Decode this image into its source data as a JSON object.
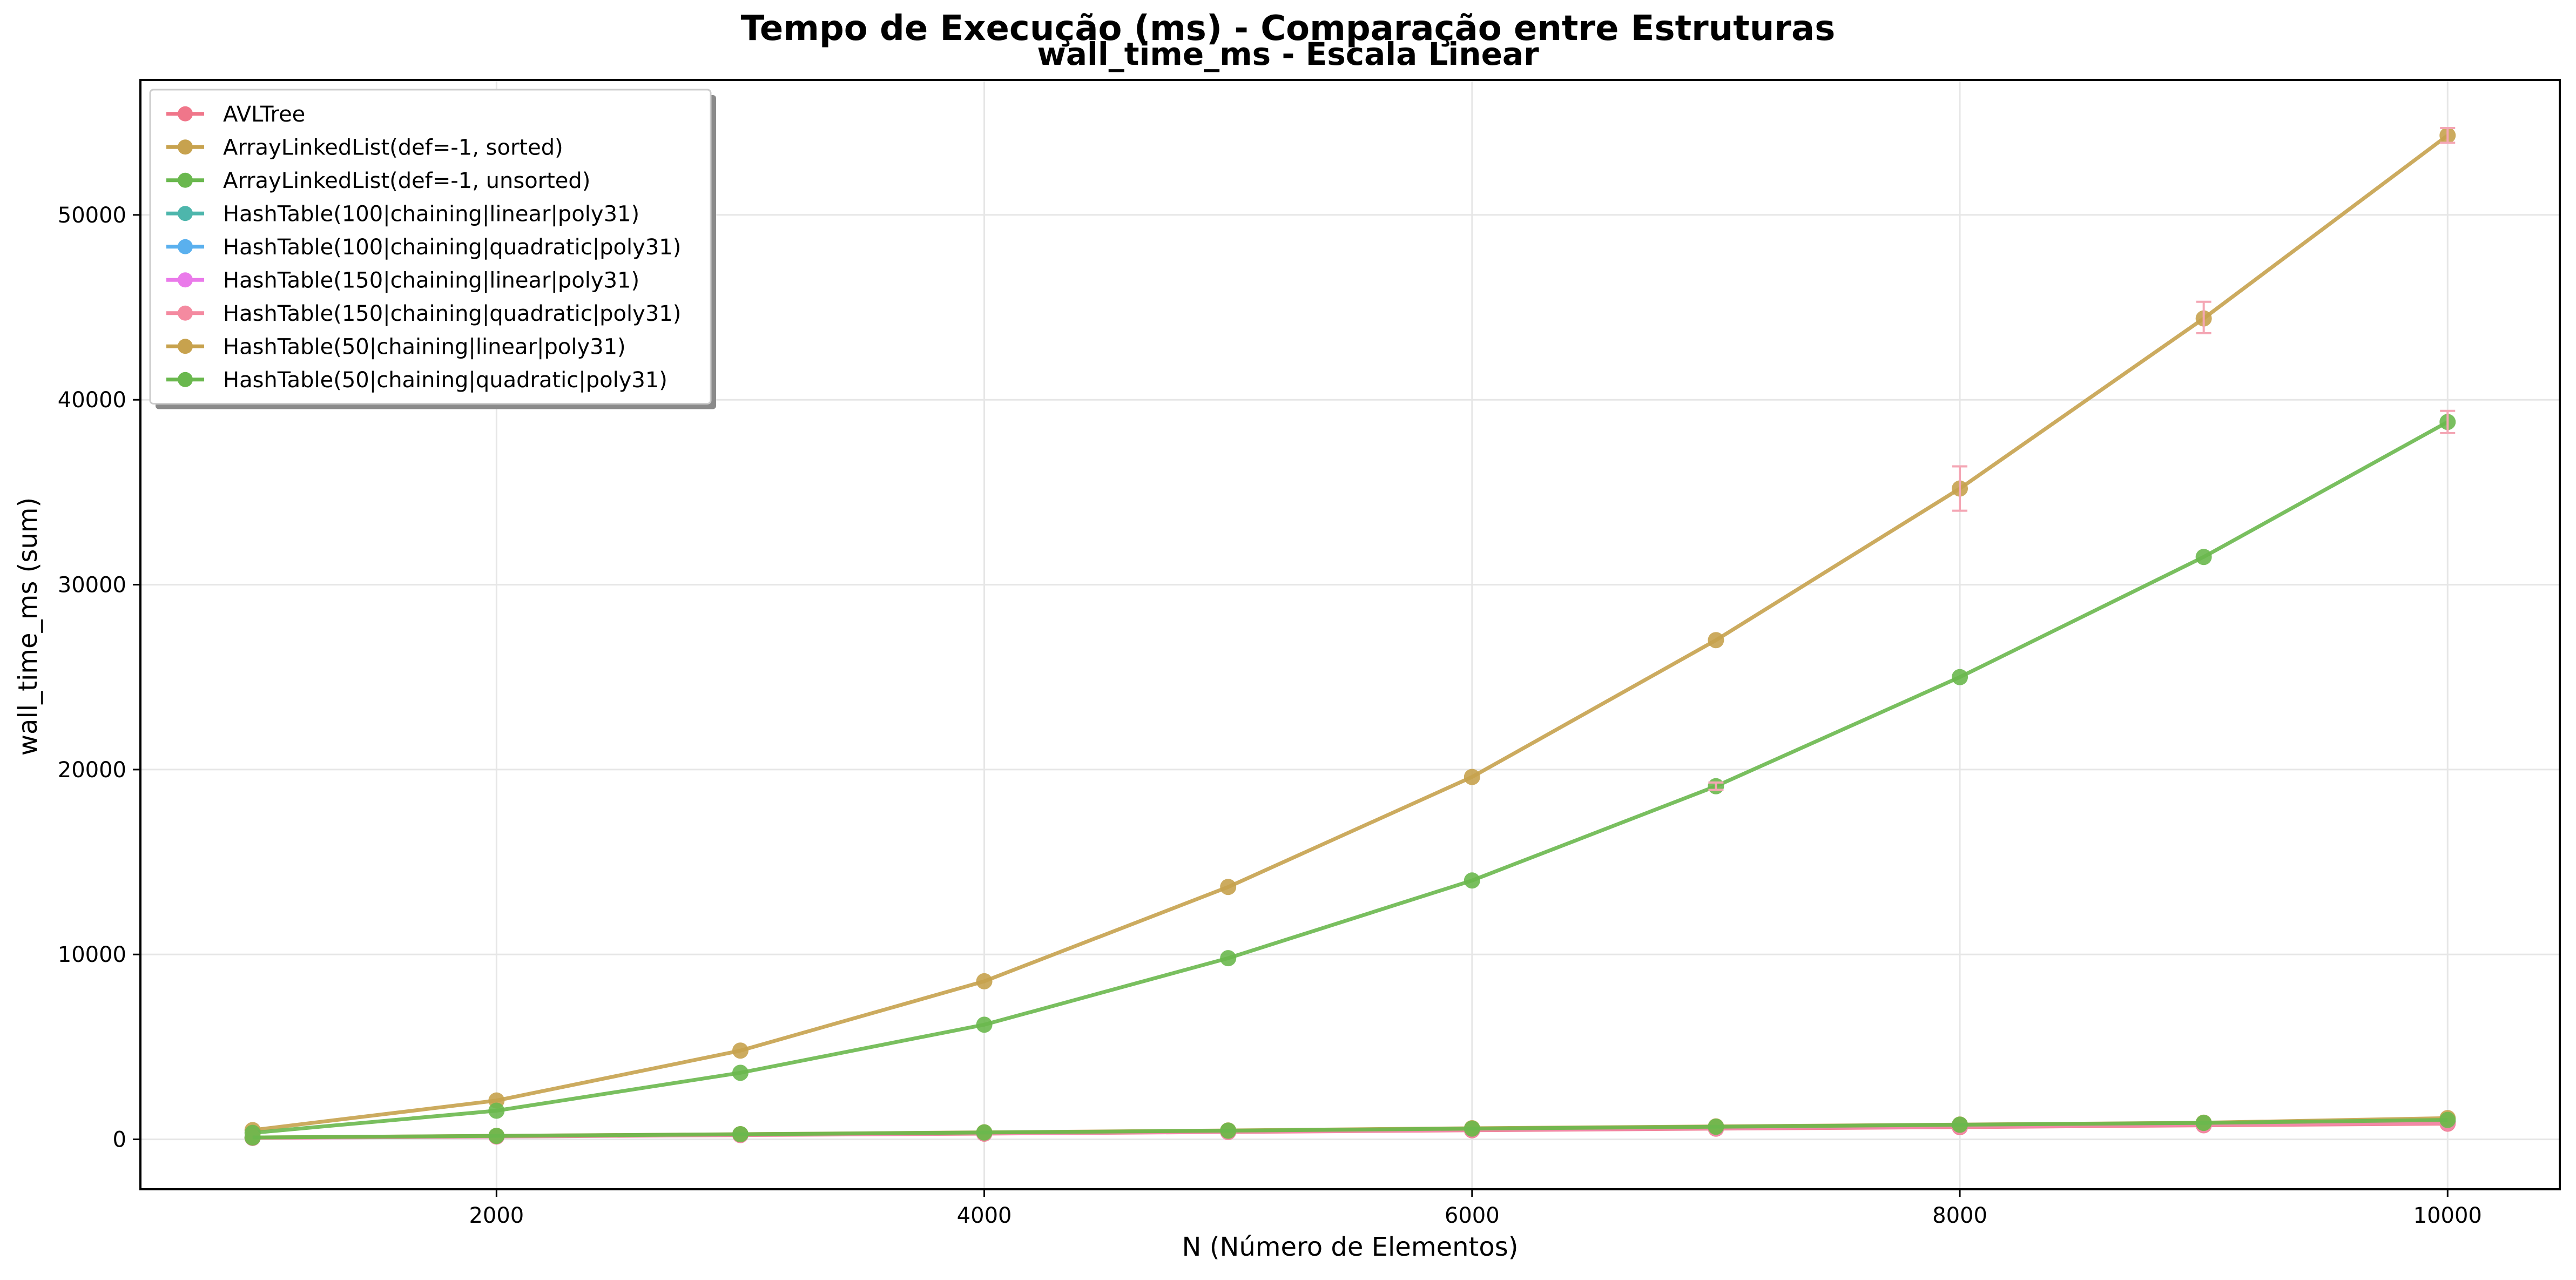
{
  "figure": {
    "suptitle": "Tempo de Execução (ms) - Comparação entre Estruturas"
  },
  "chart_data": {
    "type": "line",
    "title": "wall_time_ms - Escala Linear",
    "xlabel": "N (Número de Elementos)",
    "ylabel": "wall_time_ms (sum)",
    "xlim": [
      540,
      10460
    ],
    "ylim": [
      -2700,
      57300
    ],
    "xticks": [
      2000,
      4000,
      6000,
      8000,
      10000
    ],
    "yticks": [
      0,
      10000,
      20000,
      30000,
      40000,
      50000
    ],
    "grid": true,
    "legend_position": "upper-left",
    "x": [
      1000,
      2000,
      3000,
      4000,
      5000,
      6000,
      7000,
      8000,
      9000,
      10000
    ],
    "series": [
      {
        "name": "AVLTree",
        "color": "#f0768a",
        "values": [
          80,
          150,
          230,
          310,
          400,
          490,
          580,
          660,
          760,
          850
        ]
      },
      {
        "name": "ArrayLinkedList(def=-1, sorted)",
        "color": "#c7a24e",
        "values": [
          500,
          2100,
          4800,
          8550,
          13650,
          19600,
          27000,
          35200,
          44400,
          54300
        ]
      },
      {
        "name": "ArrayLinkedList(def=-1, unsorted)",
        "color": "#6ab84e",
        "values": [
          350,
          1550,
          3600,
          6200,
          9800,
          14000,
          19100,
          25000,
          31500,
          38800
        ]
      },
      {
        "name": "HashTable(100|chaining|linear|poly31)",
        "color": "#4db6ac",
        "values": [
          90,
          170,
          260,
          350,
          440,
          540,
          640,
          750,
          850,
          950
        ]
      },
      {
        "name": "HashTable(100|chaining|quadratic|poly31)",
        "color": "#5ab0ee",
        "values": [
          90,
          170,
          260,
          350,
          440,
          540,
          640,
          750,
          850,
          950
        ]
      },
      {
        "name": "HashTable(150|chaining|linear|poly31)",
        "color": "#ea7aea",
        "values": [
          85,
          160,
          250,
          335,
          420,
          520,
          610,
          710,
          810,
          900
        ]
      },
      {
        "name": "HashTable(150|chaining|quadratic|poly31)",
        "color": "#f48aa0",
        "values": [
          85,
          160,
          250,
          335,
          420,
          520,
          610,
          710,
          810,
          900
        ]
      },
      {
        "name": "HashTable(50|chaining|linear|poly31)",
        "color": "#c7a24e",
        "values": [
          100,
          190,
          280,
          380,
          480,
          600,
          700,
          800,
          900,
          1150
        ]
      },
      {
        "name": "HashTable(50|chaining|quadratic|poly31)",
        "color": "#6ab84e",
        "values": [
          100,
          185,
          275,
          370,
          470,
          580,
          680,
          790,
          890,
          1050
        ]
      }
    ],
    "error_bars": [
      {
        "series": "ArrayLinkedList(def=-1, sorted)",
        "x": 8000,
        "low": 34000,
        "high": 36400
      },
      {
        "series": "ArrayLinkedList(def=-1, sorted)",
        "x": 9000,
        "low": 43600,
        "high": 45300
      },
      {
        "series": "ArrayLinkedList(def=-1, sorted)",
        "x": 10000,
        "low": 53900,
        "high": 54700
      },
      {
        "series": "ArrayLinkedList(def=-1, unsorted)",
        "x": 10000,
        "low": 38200,
        "high": 39400
      },
      {
        "series": "ArrayLinkedList(def=-1, unsorted)",
        "x": 7000,
        "low": 18900,
        "high": 19300
      }
    ]
  }
}
